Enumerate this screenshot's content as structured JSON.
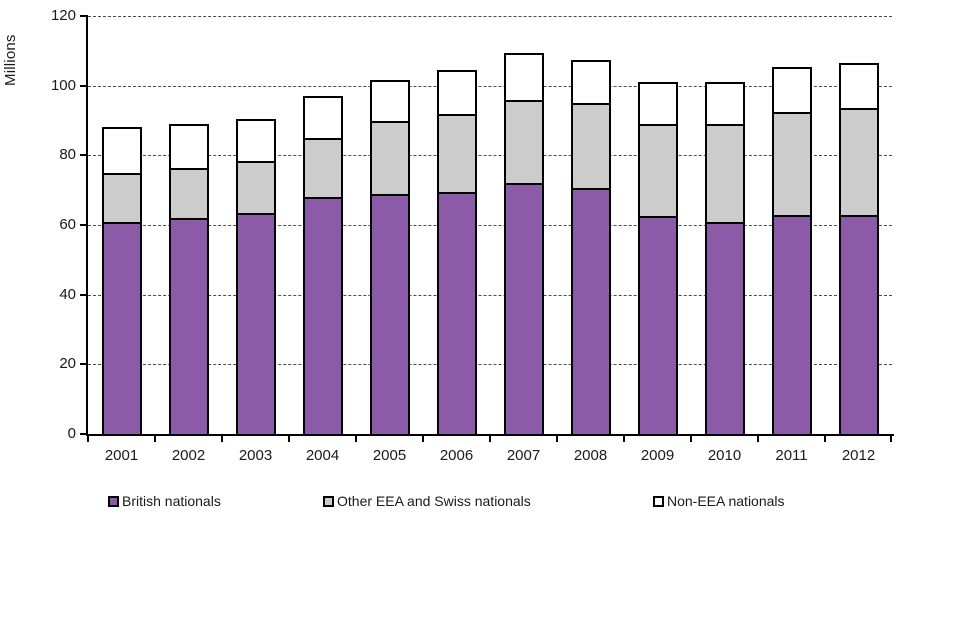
{
  "chart_data": {
    "type": "bar",
    "stacked": true,
    "title": "",
    "xlabel": "",
    "ylabel": "Millions",
    "ylim": [
      0,
      120
    ],
    "yticks": [
      0,
      20,
      40,
      60,
      80,
      100,
      120
    ],
    "grid": "horizontal-dashed",
    "legend_position": "bottom",
    "categories": [
      "2001",
      "2002",
      "2003",
      "2004",
      "2005",
      "2006",
      "2007",
      "2008",
      "2009",
      "2010",
      "2011",
      "2012"
    ],
    "series": [
      {
        "name": "British nationals",
        "color": "#8C5BA8",
        "values": [
          61,
          62,
          63.5,
          68,
          69,
          69.5,
          72,
          70.5,
          62.5,
          61,
          63,
          63
        ]
      },
      {
        "name": "Other EEA and Swiss nationals",
        "color": "#CCCCCC",
        "values": [
          14,
          14.5,
          15,
          17,
          21,
          22.5,
          24,
          24.5,
          26.5,
          28,
          29.5,
          30.5
        ]
      },
      {
        "name": "Non-EEA nationals",
        "color": "#FFFFFF",
        "values": [
          13,
          12.5,
          12,
          12,
          11.5,
          12.5,
          13.5,
          12.5,
          12,
          12,
          13,
          13
        ]
      }
    ],
    "stacked_totals": [
      88,
      89,
      90.5,
      97,
      101.5,
      104.5,
      109.5,
      107.5,
      101,
      101,
      105.5,
      106.5
    ],
    "colors": {
      "bar_border": "#000000",
      "gridline": "#4D4D4D",
      "axis": "#000000",
      "text": "#1A1A1A",
      "background": "#FFFFFF"
    }
  }
}
